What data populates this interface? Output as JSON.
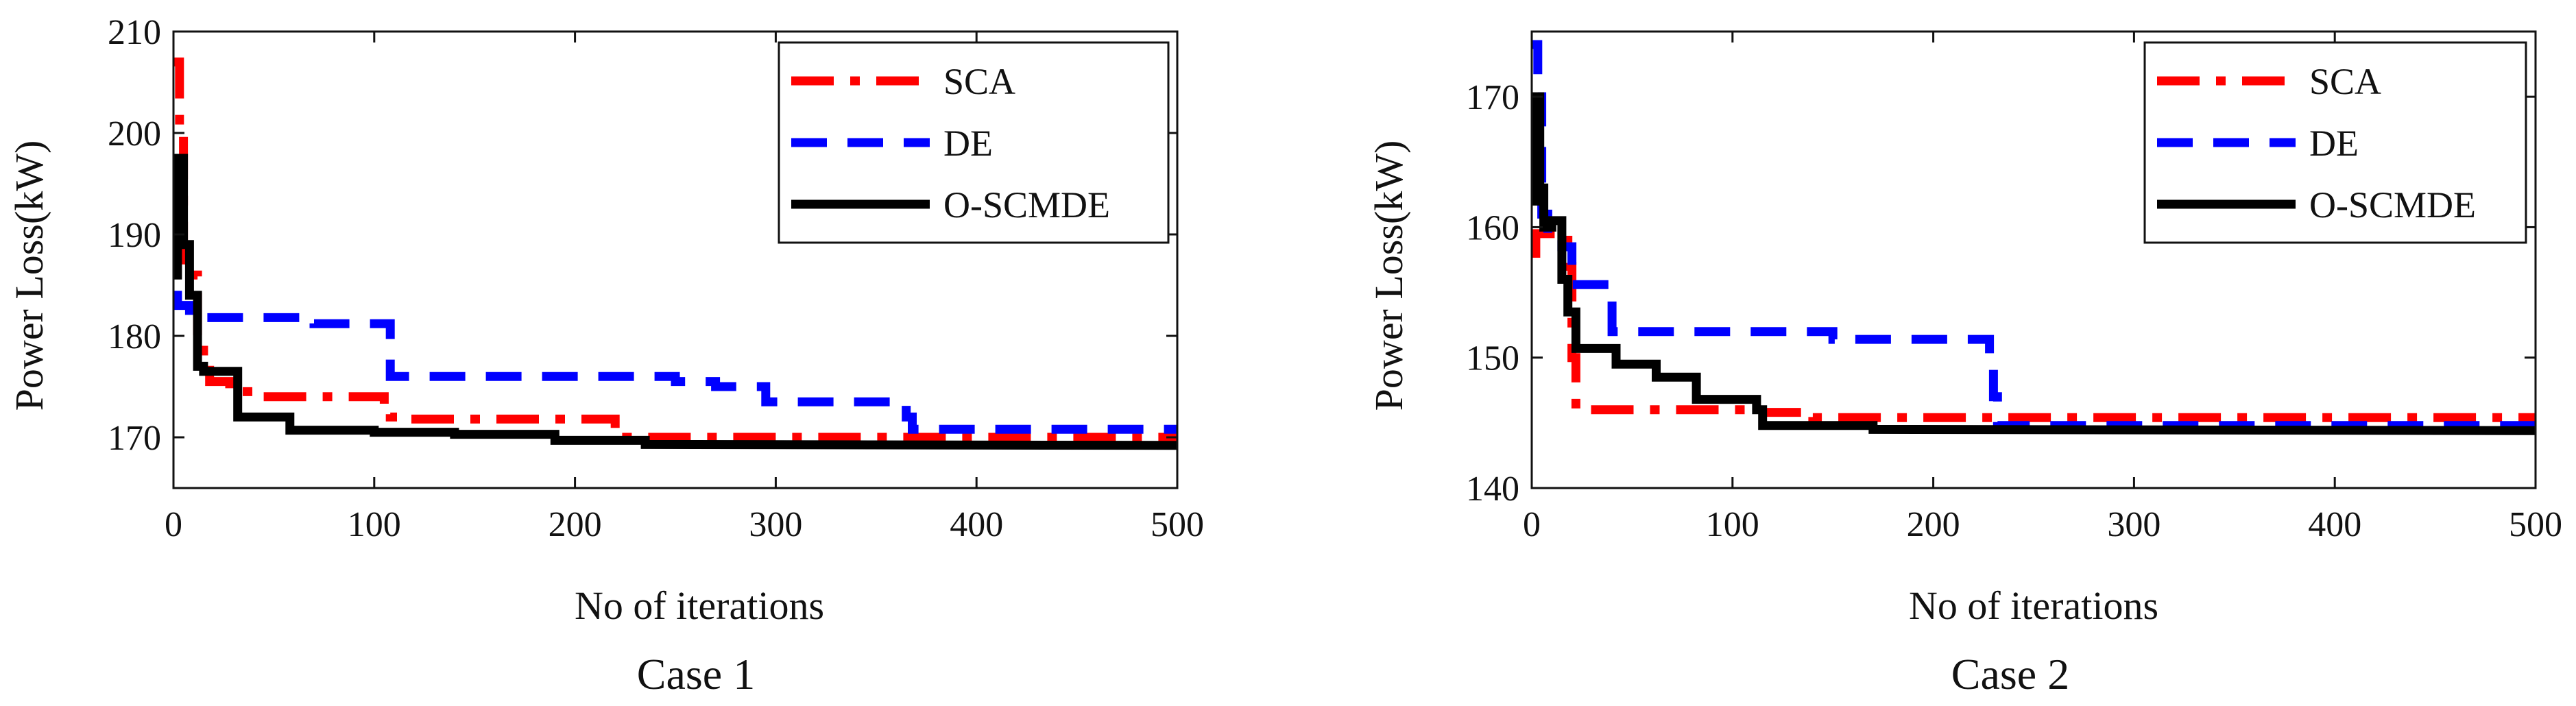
{
  "chart_data": [
    {
      "type": "line",
      "caption": "Case 1",
      "xlabel": "No of iterations",
      "ylabel": "Power Loss(kW)",
      "xlim": [
        0,
        500
      ],
      "ylim": [
        165,
        210
      ],
      "xticks": [
        0,
        100,
        200,
        300,
        400,
        500
      ],
      "yticks": [
        170,
        180,
        190,
        200,
        210
      ],
      "grid": false,
      "legend_position": "top-right",
      "series": [
        {
          "name": "SCA",
          "color": "#ff0000",
          "dash": "dash-dot",
          "points": [
            [
              0,
              207
            ],
            [
              3,
              207
            ],
            [
              3,
              200
            ],
            [
              5,
              200
            ],
            [
              5,
              186
            ],
            [
              12,
              186
            ],
            [
              12,
              180
            ],
            [
              15,
              180
            ],
            [
              15,
              178
            ],
            [
              18,
              178
            ],
            [
              18,
              175.5
            ],
            [
              28,
              175.5
            ],
            [
              28,
              174.5
            ],
            [
              40,
              174.5
            ],
            [
              40,
              174
            ],
            [
              105,
              174
            ],
            [
              105,
              173
            ],
            [
              108,
              173
            ],
            [
              108,
              172
            ],
            [
              112,
              172
            ],
            [
              112,
              171.8
            ],
            [
              220,
              171.8
            ],
            [
              220,
              170
            ],
            [
              500,
              170
            ]
          ]
        },
        {
          "name": "DE",
          "color": "#0000ff",
          "dash": "dashed",
          "points": [
            [
              0,
              184
            ],
            [
              2,
              184
            ],
            [
              2,
              183
            ],
            [
              8,
              183
            ],
            [
              8,
              181.8
            ],
            [
              70,
              181.8
            ],
            [
              70,
              181.2
            ],
            [
              108,
              181.2
            ],
            [
              108,
              176
            ],
            [
              250,
              176
            ],
            [
              250,
              175.5
            ],
            [
              270,
              175.5
            ],
            [
              270,
              175
            ],
            [
              295,
              175
            ],
            [
              295,
              173.5
            ],
            [
              365,
              173.5
            ],
            [
              365,
              172
            ],
            [
              368,
              172
            ],
            [
              368,
              170.8
            ],
            [
              500,
              170.8
            ]
          ]
        },
        {
          "name": "O-SCMDE",
          "color": "#000000",
          "dash": "solid",
          "points": [
            [
              0,
              186
            ],
            [
              2,
              186
            ],
            [
              2,
              197.5
            ],
            [
              5,
              197.5
            ],
            [
              5,
              189
            ],
            [
              8,
              189
            ],
            [
              8,
              184
            ],
            [
              12,
              184
            ],
            [
              12,
              177
            ],
            [
              15,
              177
            ],
            [
              15,
              176.5
            ],
            [
              32,
              176.5
            ],
            [
              32,
              172
            ],
            [
              58,
              172
            ],
            [
              58,
              170.7
            ],
            [
              100,
              170.7
            ],
            [
              100,
              170.5
            ],
            [
              140,
              170.5
            ],
            [
              140,
              170.3
            ],
            [
              190,
              170.3
            ],
            [
              190,
              169.7
            ],
            [
              235,
              169.7
            ],
            [
              235,
              169.3
            ],
            [
              500,
              169.2
            ]
          ]
        }
      ]
    },
    {
      "type": "line",
      "caption": "Case 2",
      "xlabel": "No of iterations",
      "ylabel": "Power Loss(kW)",
      "xlim": [
        0,
        500
      ],
      "ylim": [
        140,
        175
      ],
      "xticks": [
        0,
        100,
        200,
        300,
        400,
        500
      ],
      "yticks": [
        140,
        150,
        160,
        170
      ],
      "grid": false,
      "legend_position": "top-right",
      "series": [
        {
          "name": "SCA",
          "color": "#ff0000",
          "dash": "dash-dot",
          "points": [
            [
              0,
              158
            ],
            [
              2,
              158
            ],
            [
              2,
              159.5
            ],
            [
              15,
              159.5
            ],
            [
              15,
              159
            ],
            [
              18,
              159
            ],
            [
              18,
              157
            ],
            [
              20,
              157
            ],
            [
              20,
              150
            ],
            [
              22,
              150
            ],
            [
              22,
              146
            ],
            [
              110,
              146
            ],
            [
              110,
              145.8
            ],
            [
              140,
              145.8
            ],
            [
              140,
              145.4
            ],
            [
              500,
              145.4
            ]
          ]
        },
        {
          "name": "DE",
          "color": "#0000ff",
          "dash": "dashed",
          "points": [
            [
              0,
              174
            ],
            [
              3,
              174
            ],
            [
              3,
              170
            ],
            [
              5,
              170
            ],
            [
              5,
              161
            ],
            [
              8,
              161
            ],
            [
              8,
              159
            ],
            [
              15,
              159
            ],
            [
              15,
              158.5
            ],
            [
              20,
              158.5
            ],
            [
              20,
              155.6
            ],
            [
              40,
              155.6
            ],
            [
              40,
              152
            ],
            [
              150,
              152
            ],
            [
              150,
              151.4
            ],
            [
              228,
              151.4
            ],
            [
              228,
              150
            ],
            [
              230,
              150
            ],
            [
              230,
              147
            ],
            [
              232,
              147
            ],
            [
              232,
              144.8
            ],
            [
              500,
              144.8
            ]
          ]
        },
        {
          "name": "O-SCMDE",
          "color": "#000000",
          "dash": "solid",
          "points": [
            [
              0,
              162
            ],
            [
              2,
              162
            ],
            [
              2,
              170
            ],
            [
              4,
              170
            ],
            [
              4,
              163
            ],
            [
              6,
              163
            ],
            [
              6,
              160
            ],
            [
              10,
              160
            ],
            [
              10,
              160.5
            ],
            [
              15,
              160.5
            ],
            [
              15,
              156
            ],
            [
              18,
              156
            ],
            [
              18,
              153.5
            ],
            [
              22,
              153.5
            ],
            [
              22,
              150.7
            ],
            [
              42,
              150.7
            ],
            [
              42,
              149.5
            ],
            [
              62,
              149.5
            ],
            [
              62,
              148.5
            ],
            [
              82,
              148.5
            ],
            [
              82,
              146.8
            ],
            [
              112,
              146.8
            ],
            [
              112,
              146
            ],
            [
              115,
              146
            ],
            [
              115,
              144.8
            ],
            [
              170,
              144.8
            ],
            [
              170,
              144.5
            ],
            [
              500,
              144.4
            ]
          ]
        }
      ]
    }
  ]
}
